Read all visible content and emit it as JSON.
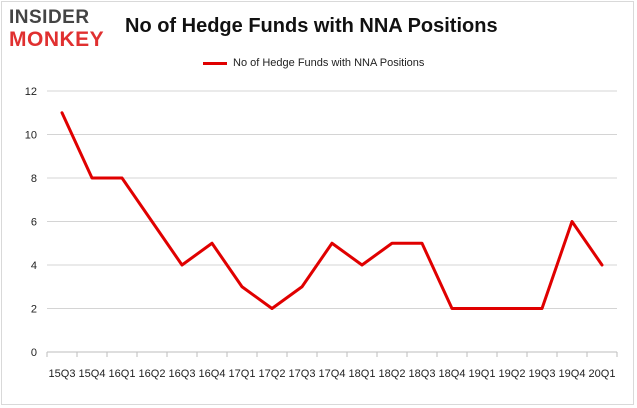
{
  "logo": {
    "top": "INSIDER",
    "bottom": "MONKEY"
  },
  "chart_data": {
    "type": "line",
    "title": "No of Hedge Funds with NNA Positions",
    "xlabel": "",
    "ylabel": "",
    "legend": "top-center",
    "grid": true,
    "ylim": [
      0,
      12
    ],
    "yticks": [
      "0",
      "2",
      "4",
      "6",
      "8",
      "10",
      "12"
    ],
    "categories": [
      "15Q3",
      "15Q4",
      "16Q1",
      "16Q2",
      "16Q3",
      "16Q4",
      "17Q1",
      "17Q2",
      "17Q3",
      "17Q4",
      "18Q1",
      "18Q2",
      "18Q3",
      "18Q4",
      "19Q1",
      "19Q2",
      "19Q3",
      "19Q4",
      "20Q1"
    ],
    "series": [
      {
        "name": "No of Hedge Funds with NNA Positions",
        "color": "#e00000",
        "values": [
          11,
          8,
          8,
          6,
          4,
          5,
          3,
          2,
          3,
          5,
          4,
          5,
          5,
          2,
          2,
          2,
          2,
          6,
          4
        ]
      }
    ]
  }
}
